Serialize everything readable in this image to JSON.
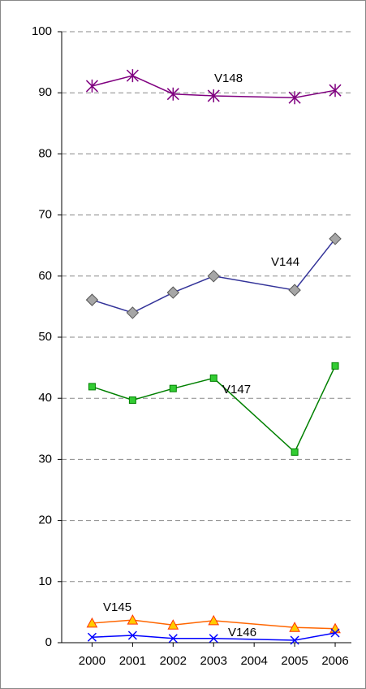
{
  "chart_data": {
    "type": "line",
    "x": [
      2000,
      2001,
      2002,
      2003,
      2005,
      2006
    ],
    "xlim": [
      1999.25,
      2006.4
    ],
    "xticks": [
      2000,
      2001,
      2002,
      2003,
      2004,
      2005,
      2006
    ],
    "ylim": [
      0,
      100
    ],
    "yticks": [
      0,
      10,
      20,
      30,
      40,
      50,
      60,
      70,
      80,
      90,
      100
    ],
    "grid": true,
    "series": [
      {
        "name": "V148",
        "color": "#800080",
        "marker": "star",
        "marker_fill": "#800080",
        "values": [
          91.1,
          92.8,
          89.8,
          89.5,
          89.2,
          90.4
        ]
      },
      {
        "name": "V144",
        "color": "#333399",
        "marker": "diamond",
        "marker_fill": "#a6a6a6",
        "values": [
          56.1,
          54.0,
          57.3,
          60.0,
          57.7,
          66.1
        ]
      },
      {
        "name": "V147",
        "color": "#008000",
        "marker": "square",
        "marker_fill": "#33cc33",
        "values": [
          41.9,
          39.7,
          41.6,
          43.3,
          31.2,
          45.3
        ]
      },
      {
        "name": "V145",
        "color": "#ff6600",
        "marker": "triangle",
        "marker_fill": "#ffcc00",
        "values": [
          3.2,
          3.7,
          2.9,
          3.6,
          2.5,
          2.3
        ]
      },
      {
        "name": "V146",
        "color": "#0000ff",
        "marker": "x",
        "marker_fill": "#0000ff",
        "values": [
          0.9,
          1.2,
          0.7,
          0.7,
          0.4,
          1.6
        ]
      }
    ]
  }
}
